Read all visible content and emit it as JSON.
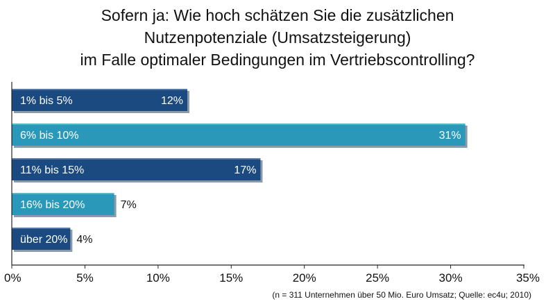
{
  "title_lines": [
    "Sofern ja: Wie hoch schätzen Sie die zusätzlichen",
    "Nutzenpotenziale (Umsatzsteigerung)",
    "im Falle optimaler Bedingungen im Vertriebscontrolling?"
  ],
  "source_note": "(n = 311 Unternehmen über 50 Mio. Euro Umsatz; Quelle: ec4u; 2010)",
  "colors": {
    "dark": "#1a4a80",
    "light": "#2a98b9",
    "shadow": "#8a9aaa",
    "axis": "#222222"
  },
  "chart_data": {
    "type": "bar",
    "orientation": "horizontal",
    "categories": [
      "1% bis 5%",
      "6% bis 10%",
      "11% bis 15%",
      "16% bis 20%",
      "über 20%"
    ],
    "values": [
      12,
      31,
      17,
      7,
      4
    ],
    "value_labels": [
      "12%",
      "31%",
      "17%",
      "7%",
      "4%"
    ],
    "bar_colors": [
      "dark",
      "light",
      "dark",
      "light",
      "dark"
    ],
    "xlim": [
      0,
      35
    ],
    "xticks": [
      0,
      5,
      10,
      15,
      20,
      25,
      30,
      35
    ],
    "xtick_labels": [
      "0%",
      "5%",
      "10%",
      "15%",
      "20%",
      "25%",
      "30%",
      "35%"
    ],
    "xlabel": "",
    "ylabel": "",
    "grid": false
  }
}
